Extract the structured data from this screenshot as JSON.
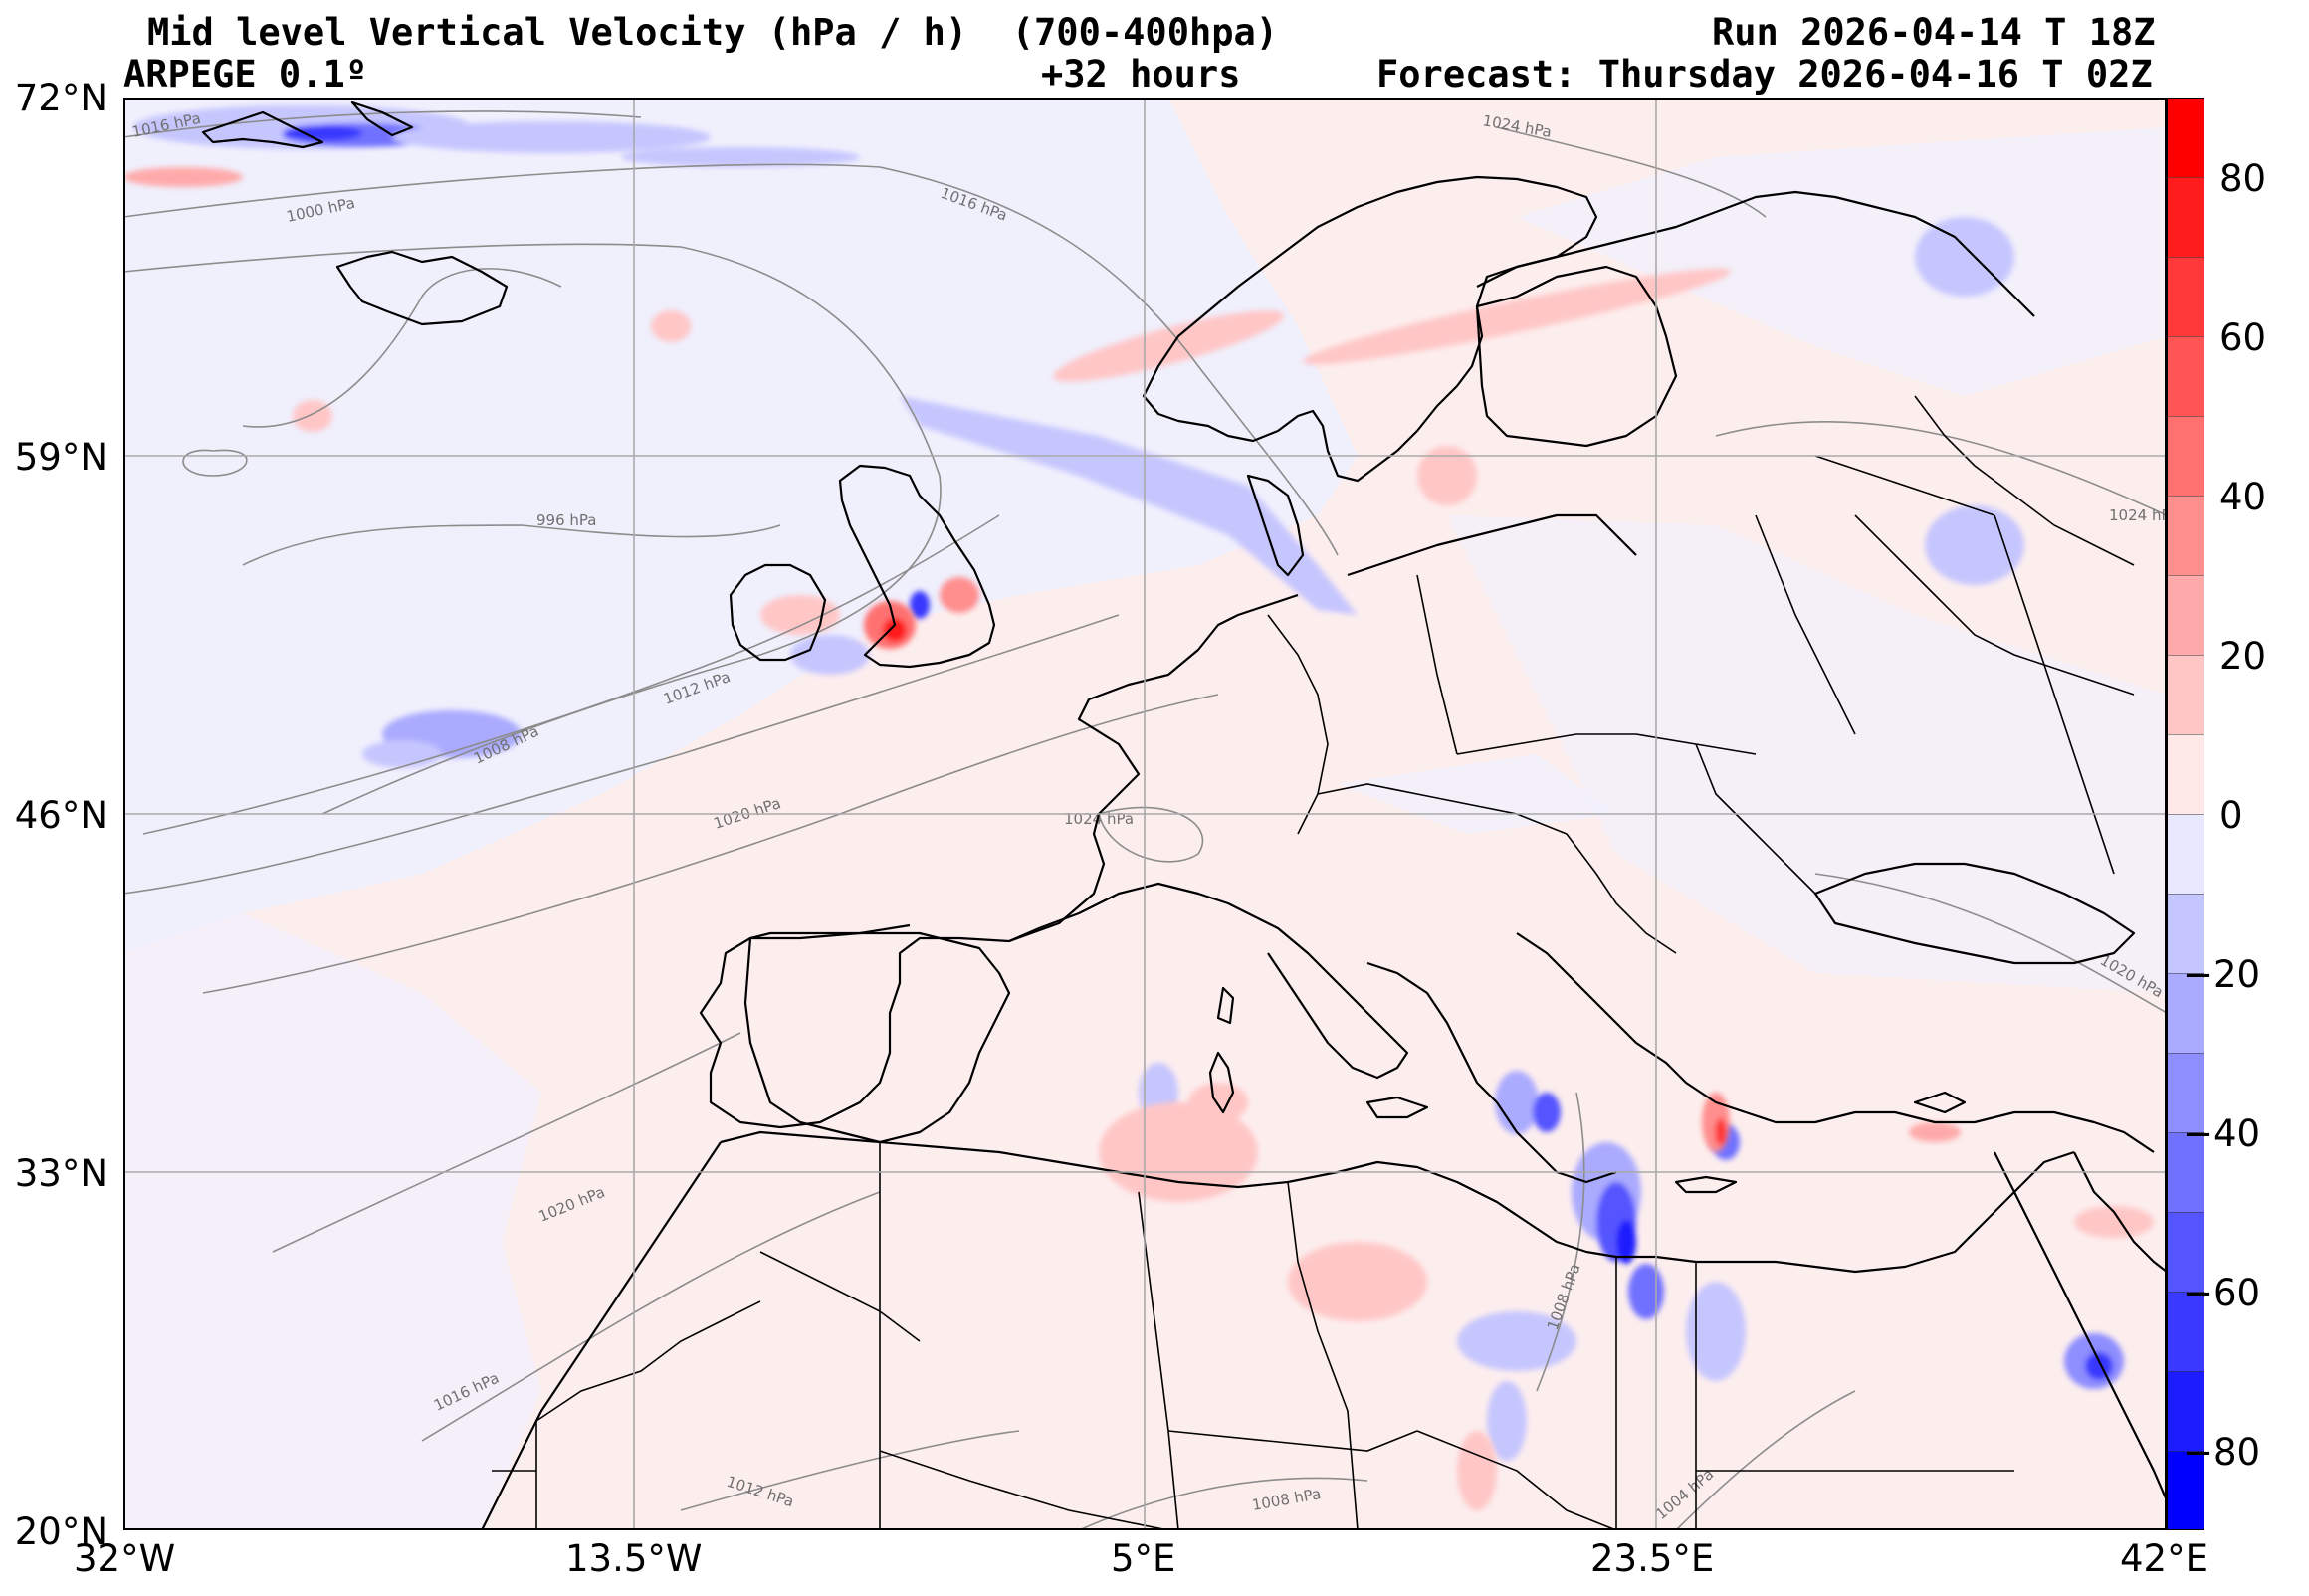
{
  "header": {
    "title": "Mid level Vertical Velocity (hPa / h)  (700-400hpa)",
    "model": "ARPEGE 0.1º",
    "lead": "+32 hours",
    "run": "Run 2026-04-14 T 18Z",
    "forecast": "Forecast: Thursday 2026-04-16 T 02Z"
  },
  "axes": {
    "lat_labels": [
      "72°N",
      "59°N",
      "46°N",
      "33°N",
      "20°N"
    ],
    "lon_labels": [
      "32°W",
      "13.5°W",
      "5°E",
      "23.5°E",
      "42°E"
    ]
  },
  "colorbar": {
    "ticks": [
      "80",
      "60",
      "40",
      "20",
      "0",
      "−20",
      "−40",
      "−60",
      "−80"
    ],
    "levels": [
      -90,
      -80,
      -70,
      -60,
      -50,
      -40,
      -30,
      -20,
      -10,
      0,
      10,
      20,
      30,
      40,
      50,
      60,
      70,
      80,
      90
    ],
    "colors": [
      "#0000ff",
      "#1c1cff",
      "#3939ff",
      "#5555ff",
      "#7171ff",
      "#8e8eff",
      "#aaaaff",
      "#c6c6ff",
      "#e8e8ff",
      "#ffe8e8",
      "#ffc6c6",
      "#ffaaaa",
      "#ff8e8e",
      "#ff7171",
      "#ff5555",
      "#ff3939",
      "#ff1c1c",
      "#ff0000"
    ]
  },
  "isobars": {
    "labels": [
      "1016 hPa",
      "1000 hPa",
      "1016 hPa",
      "1024 hPa",
      "996 hPa",
      "1012 hPa",
      "1008 hPa",
      "1020 hPa",
      "1024 hPa",
      "1024 hPa",
      "1020 hPa",
      "1020 hPa",
      "1008 hPa",
      "1016 hPa",
      "1012 hPa",
      "1008 hPa",
      "1004 hPa"
    ]
  },
  "colors": {
    "background": "#fdeeee",
    "ocean_tint": "#f1f1fd",
    "coast": "#000000",
    "grid": "#a9a9a9",
    "isobar": "#8c8c8c"
  }
}
